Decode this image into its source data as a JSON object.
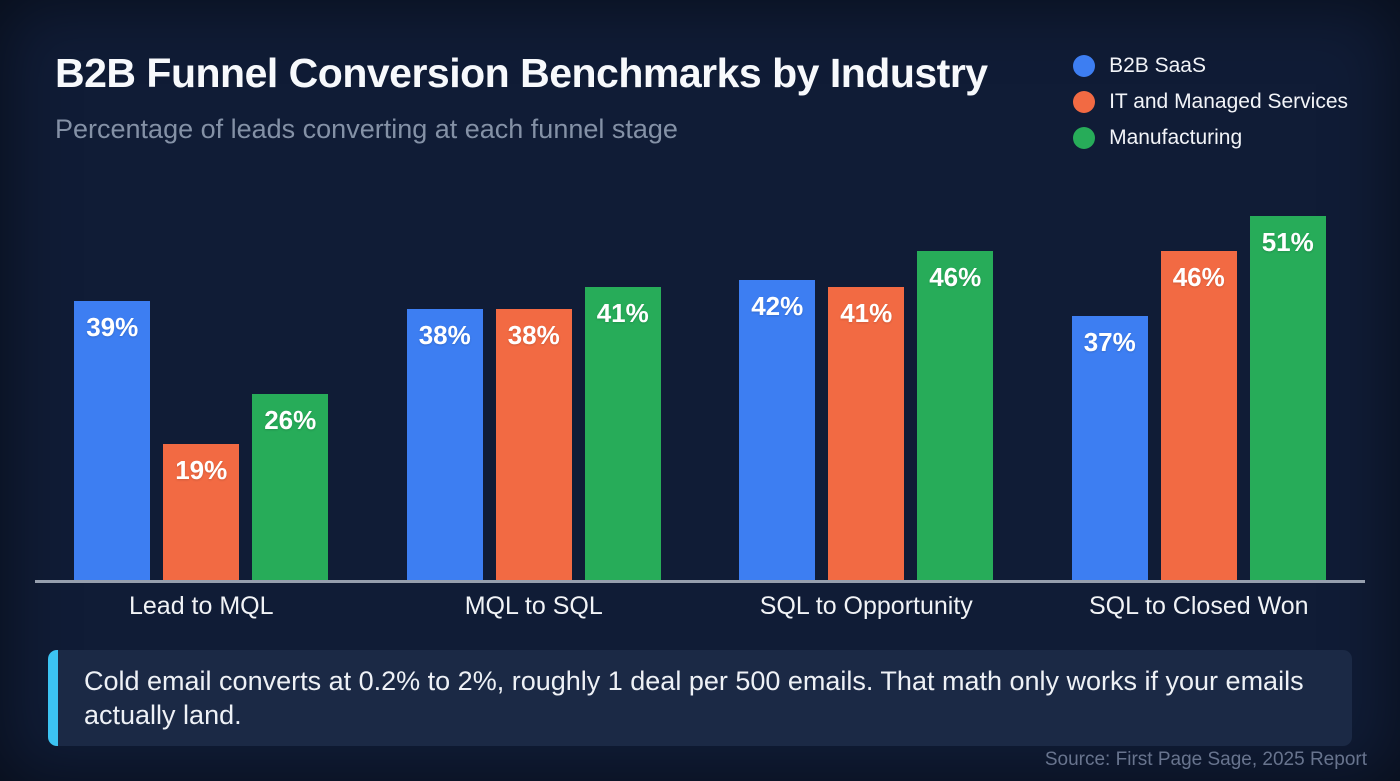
{
  "header": {
    "title": "B2B Funnel Conversion Benchmarks by Industry",
    "subtitle": "Percentage of leads converting at each funnel stage"
  },
  "chart_data": {
    "type": "bar",
    "title": "B2B Funnel Conversion Benchmarks by Industry",
    "subtitle": "Percentage of leads converting at each funnel stage",
    "categories": [
      "Lead to MQL",
      "MQL to SQL",
      "SQL to Opportunity",
      "SQL to Closed Won"
    ],
    "series": [
      {
        "name": "B2B SaaS",
        "color": "#3d7ef2",
        "values": [
          39,
          38,
          42,
          37
        ]
      },
      {
        "name": "IT and Managed Services",
        "color": "#f26a43",
        "values": [
          19,
          38,
          41,
          46
        ]
      },
      {
        "name": "Manufacturing",
        "color": "#27ac59",
        "values": [
          26,
          41,
          46,
          51
        ]
      }
    ],
    "value_suffix": "%",
    "xlabel": "",
    "ylabel": "",
    "ylim": [
      0,
      56
    ],
    "grid": false,
    "legend_position": "top-right",
    "data_labels": "inside-top"
  },
  "callout": {
    "text": "Cold email converts at 0.2% to 2%, roughly 1 deal per 500 emails. That math only works if your emails actually land.",
    "accent_color": "#3cc3f2"
  },
  "source": {
    "text": "Source: First Page Sage, 2025 Report"
  },
  "colors": {
    "background": "#101c36",
    "callout_background": "#1b2945",
    "axis_line": "#969fae",
    "title_text": "#f7f9fc",
    "subtitle_text": "#8491a6",
    "bar_label_text": "#ffffff",
    "source_text": "#68748e"
  }
}
